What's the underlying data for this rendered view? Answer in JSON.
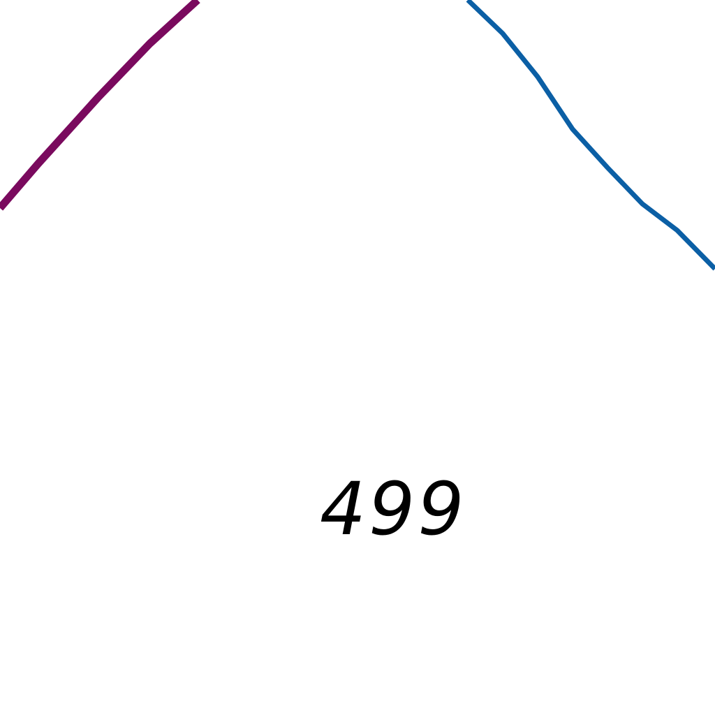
{
  "map": {
    "label": "499",
    "features": [
      {
        "name": "road-line-magenta",
        "color": "#7a0a5e"
      },
      {
        "name": "boundary-line-blue",
        "color": "#0b5fa5"
      }
    ],
    "label_color": "#000000",
    "background_color": "#ffffff"
  }
}
